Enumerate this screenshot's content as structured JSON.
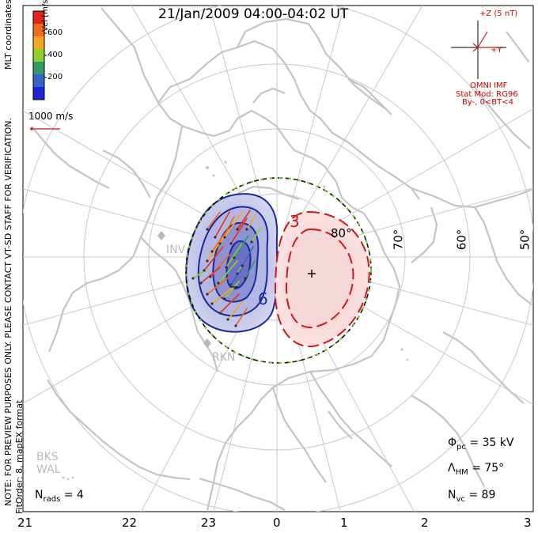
{
  "title": "21/Jan/2009 04:00-04:02 UT",
  "side_text": {
    "preview_note": "NOTE: FOR PREVIEW PURPOSES ONLY. PLEASE CONTACT VT-SD STAFF FOR VERIFICATION.",
    "fit_order": "FitOrder: 8, mapEX format",
    "coordinates": "MLT coordinates"
  },
  "colorbar": {
    "title": "Vel [m/s]",
    "ticks": [
      "600",
      "400",
      "200"
    ],
    "colors": [
      "#e8241e",
      "#f26a1a",
      "#f7a81c",
      "#8ed02c",
      "#2f9a6a",
      "#3764c8",
      "#1f22d6"
    ]
  },
  "velocity_reference": "1000 m/s",
  "imf": {
    "z_label": "+Z (5 nT)",
    "y_label": "+Y",
    "source": "OMNI IMF",
    "model": "Stat Mod: RG96",
    "condition": "By-, 0<BT<4"
  },
  "stats": {
    "phi_sym": "Φ",
    "phi_sub": "pc",
    "phi_val": "= 35 kV",
    "lam_sym": "Λ",
    "lam_sub": "HM",
    "lam_val": "= 75°",
    "nvc_sym": "N",
    "nvc_sub": "vc",
    "nvc_val": "= 89",
    "nrads_sym": "N",
    "nrads_sub": "rads",
    "nrads_val": "= 4"
  },
  "mlt_labels": [
    "21",
    "22",
    "23",
    "0",
    "1",
    "2",
    "3"
  ],
  "lat_labels": [
    "80°",
    "70°",
    "60°",
    "50°"
  ],
  "contour_labels": [
    "3",
    "6"
  ],
  "stations": [
    "INV",
    "RKN",
    "BKS",
    "WAL"
  ],
  "markers": {
    "minus": "–",
    "plus": "+"
  }
}
